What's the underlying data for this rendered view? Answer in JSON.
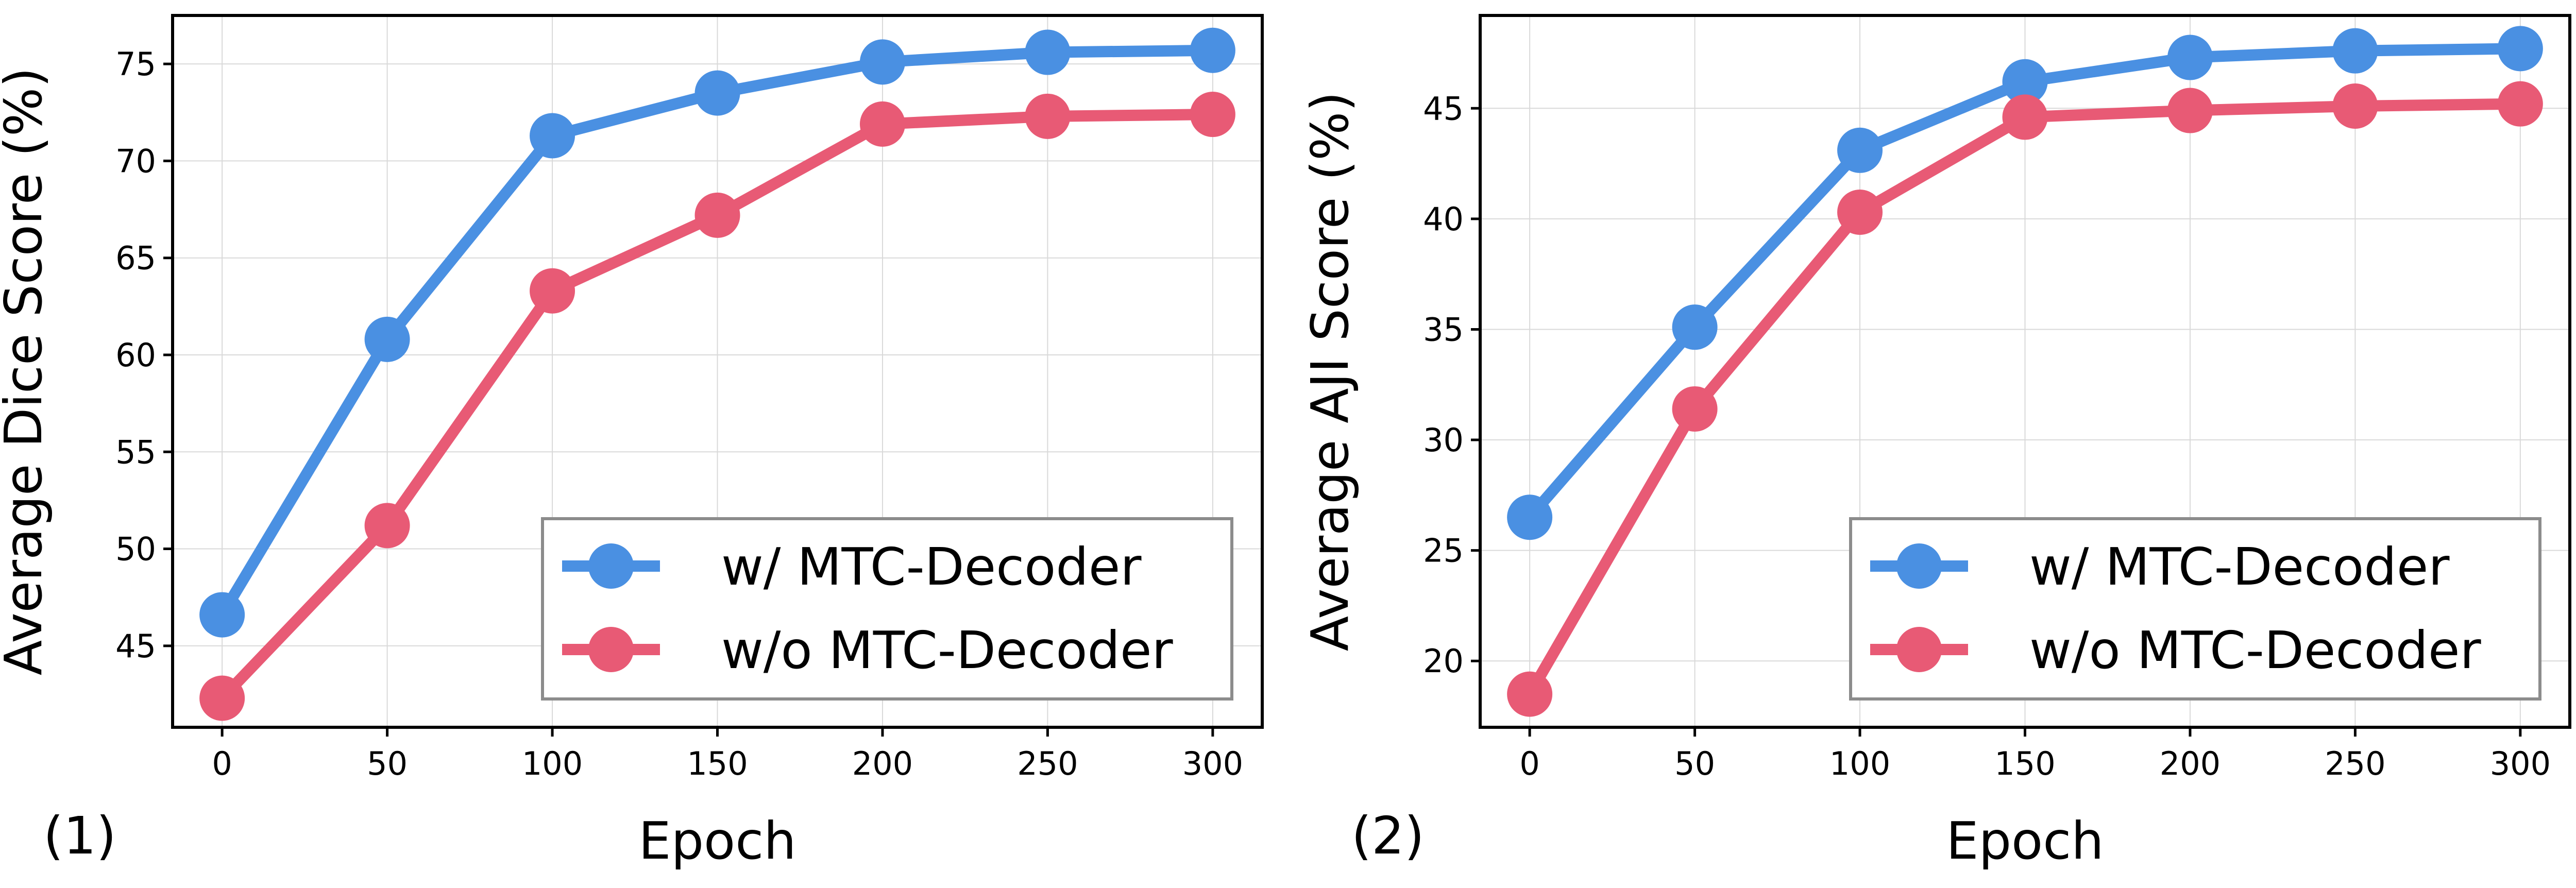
{
  "colors": {
    "with": "#4a90e2",
    "without": "#e85a75"
  },
  "chart_data": [
    {
      "type": "line",
      "panel_tag": "(1)",
      "xlabel": "Epoch",
      "ylabel": "Average Dice Score (%)",
      "x": [
        0,
        50,
        100,
        150,
        200,
        250,
        300
      ],
      "xticks": [
        "0",
        "50",
        "100",
        "150",
        "200",
        "250",
        "300"
      ],
      "xlim": [
        -15,
        315
      ],
      "yticks": [
        "45",
        "50",
        "55",
        "60",
        "65",
        "70",
        "75"
      ],
      "ylim": [
        40.8,
        77.5
      ],
      "grid": true,
      "legend_position": "lower-right",
      "series": [
        {
          "name": "w/ MTC-Decoder",
          "color_key": "with",
          "values": [
            46.6,
            60.8,
            71.3,
            73.5,
            75.1,
            75.6,
            75.7
          ]
        },
        {
          "name": "w/o MTC-Decoder",
          "color_key": "without",
          "values": [
            42.3,
            51.2,
            63.3,
            67.2,
            71.9,
            72.3,
            72.4
          ]
        }
      ]
    },
    {
      "type": "line",
      "panel_tag": "(2)",
      "xlabel": "Epoch",
      "ylabel": "Average AJI Score (%)",
      "x": [
        0,
        50,
        100,
        150,
        200,
        250,
        300
      ],
      "xticks": [
        "0",
        "50",
        "100",
        "150",
        "200",
        "250",
        "300"
      ],
      "xlim": [
        -15,
        315
      ],
      "yticks": [
        "20",
        "25",
        "30",
        "35",
        "40",
        "45"
      ],
      "ylim": [
        17.0,
        49.2
      ],
      "grid": true,
      "legend_position": "lower-right",
      "series": [
        {
          "name": "w/ MTC-Decoder",
          "color_key": "with",
          "values": [
            26.5,
            35.1,
            43.1,
            46.2,
            47.3,
            47.6,
            47.7
          ]
        },
        {
          "name": "w/o MTC-Decoder",
          "color_key": "without",
          "values": [
            18.5,
            31.4,
            40.3,
            44.6,
            44.9,
            45.1,
            45.2
          ]
        }
      ]
    }
  ]
}
